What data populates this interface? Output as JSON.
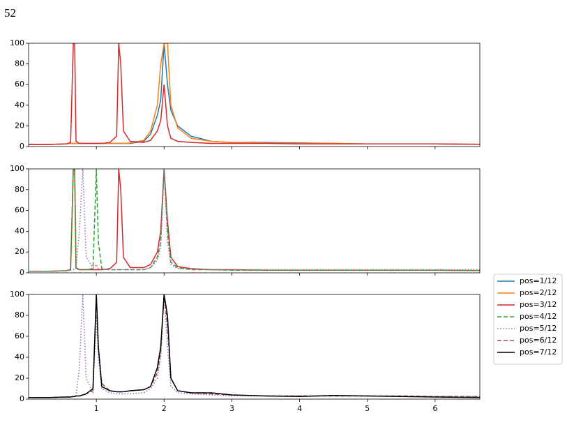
{
  "header": "52",
  "legend": [
    {
      "name": "pos=1/12",
      "color": "#1f77b4",
      "dash": "solid"
    },
    {
      "name": "pos=2/12",
      "color": "#ff7f0e",
      "dash": "solid"
    },
    {
      "name": "pos=3/12",
      "color": "#d62728",
      "dash": "solid"
    },
    {
      "name": "pos=4/12",
      "color": "#2ca02c",
      "dash": "dashed"
    },
    {
      "name": "pos=5/12",
      "color": "#9467bd",
      "dash": "dotted"
    },
    {
      "name": "pos=6/12",
      "color": "#8c564b",
      "dash": "dashed"
    },
    {
      "name": "pos=7/12",
      "color": "#000000",
      "dash": "solid"
    }
  ],
  "chart_data": [
    {
      "type": "line",
      "x": [
        0,
        0.3,
        0.55,
        0.62,
        0.66,
        0.68,
        0.7,
        0.75,
        0.8,
        0.85,
        0.95,
        1.0,
        1.03,
        1.08,
        1.2,
        1.3,
        1.33,
        1.36,
        1.4,
        1.5,
        1.7,
        1.8,
        1.9,
        1.95,
        2.0,
        2.05,
        2.1,
        2.2,
        2.4,
        2.7,
        3.0,
        3.5,
        4.0,
        4.5,
        5.0,
        5.5,
        6.0,
        6.66
      ],
      "xlim": [
        0,
        6.66
      ],
      "ylim": [
        0,
        100
      ],
      "yticks": [
        0,
        20,
        40,
        60,
        80,
        100
      ],
      "series": [
        {
          "color": "#1f77b4",
          "dash": "solid",
          "values": [
            2,
            2,
            2.5,
            3,
            3,
            3,
            3,
            3,
            3,
            3,
            3,
            3,
            3,
            3,
            3,
            3,
            3,
            3,
            3,
            3,
            5,
            12,
            30,
            45,
            100,
            60,
            35,
            20,
            10,
            5,
            4,
            4,
            3.5,
            3,
            2.5,
            2.5,
            2.5,
            2.2
          ]
        },
        {
          "color": "#ff7f0e",
          "dash": "solid",
          "values": [
            2,
            2,
            2.5,
            3,
            3,
            3,
            3,
            3,
            3,
            3,
            3,
            3,
            3,
            3,
            3,
            3,
            3,
            3,
            3,
            3.5,
            6,
            15,
            40,
            80,
            100,
            100,
            40,
            18,
            8,
            5,
            4,
            3.5,
            3,
            3,
            2.5,
            2.5,
            2.5,
            2.2
          ]
        },
        {
          "color": "#d62728",
          "dash": "solid",
          "values": [
            2,
            2,
            2.5,
            4,
            100,
            100,
            5,
            3,
            3,
            3,
            3,
            3,
            3,
            3,
            4,
            10,
            100,
            80,
            15,
            5,
            4,
            6,
            15,
            25,
            60,
            20,
            8,
            5,
            4,
            3,
            3,
            3,
            2.5,
            2.5,
            2.5,
            2.5,
            2.5,
            2.2
          ]
        }
      ]
    },
    {
      "type": "line",
      "x": [
        0,
        0.3,
        0.55,
        0.62,
        0.66,
        0.68,
        0.7,
        0.75,
        0.8,
        0.85,
        0.95,
        1.0,
        1.03,
        1.08,
        1.2,
        1.3,
        1.33,
        1.36,
        1.4,
        1.5,
        1.7,
        1.8,
        1.9,
        1.95,
        2.0,
        2.05,
        2.1,
        2.2,
        2.4,
        2.7,
        3.0,
        3.5,
        4.0,
        4.5,
        5.0,
        5.5,
        6.0,
        6.66
      ],
      "xlim": [
        0,
        6.66
      ],
      "ylim": [
        0,
        100
      ],
      "yticks": [
        0,
        20,
        40,
        60,
        80,
        100
      ],
      "series": [
        {
          "color": "#d62728",
          "dash": "solid",
          "values": [
            1.5,
            1.5,
            2,
            3,
            100,
            100,
            5,
            3,
            3,
            3,
            3,
            3,
            3,
            3,
            4,
            10,
            100,
            80,
            15,
            5,
            5,
            8,
            20,
            40,
            100,
            50,
            15,
            6,
            4,
            3,
            3,
            2.5,
            2.5,
            2.5,
            2.5,
            2.5,
            2.5,
            2.2
          ]
        },
        {
          "color": "#2ca02c",
          "dash": "dashed",
          "values": [
            1.5,
            1.5,
            2,
            3,
            100,
            100,
            4,
            3,
            3,
            3,
            4,
            100,
            30,
            4,
            3,
            3,
            3,
            3,
            3,
            3,
            3,
            5,
            15,
            30,
            100,
            40,
            10,
            5,
            3,
            3,
            2.5,
            2.5,
            2.5,
            2.5,
            2.5,
            2.5,
            2.5,
            2.2
          ]
        },
        {
          "color": "#9467bd",
          "dash": "dotted",
          "values": [
            1.5,
            1.5,
            2,
            2.5,
            3,
            3,
            5,
            40,
            100,
            15,
            5,
            8,
            4,
            3,
            3,
            3,
            3,
            3,
            3,
            3,
            3,
            5,
            12,
            25,
            100,
            30,
            8,
            4,
            3.5,
            3,
            3,
            3,
            3,
            3,
            3,
            3,
            3,
            3
          ]
        }
      ]
    },
    {
      "type": "line",
      "x": [
        0,
        0.3,
        0.55,
        0.62,
        0.66,
        0.68,
        0.7,
        0.75,
        0.8,
        0.85,
        0.95,
        1.0,
        1.03,
        1.08,
        1.2,
        1.3,
        1.33,
        1.36,
        1.4,
        1.5,
        1.7,
        1.8,
        1.9,
        1.95,
        2.0,
        2.05,
        2.1,
        2.2,
        2.4,
        2.7,
        3.0,
        3.5,
        4.0,
        4.5,
        5.0,
        5.5,
        6.0,
        6.66
      ],
      "xlim": [
        0,
        6.66
      ],
      "xticks": [
        1,
        2,
        3,
        4,
        5,
        6
      ],
      "ylim": [
        0,
        100
      ],
      "yticks": [
        0,
        20,
        40,
        60,
        80,
        100
      ],
      "series": [
        {
          "color": "#9467bd",
          "dash": "dotted",
          "values": [
            1.5,
            1.5,
            2,
            2,
            2.5,
            2.5,
            3,
            30,
            100,
            20,
            6,
            80,
            40,
            10,
            6,
            5,
            5,
            5,
            5,
            5,
            6,
            10,
            20,
            40,
            100,
            50,
            12,
            6,
            5,
            4,
            3,
            3,
            3,
            3,
            3,
            2.5,
            2.5,
            2.5
          ]
        },
        {
          "color": "#8c564b",
          "dash": "dashed",
          "values": [
            1.5,
            1.5,
            2,
            2,
            2.5,
            2.5,
            3,
            3,
            4,
            5,
            8,
            100,
            50,
            15,
            8,
            7,
            7,
            7,
            7,
            8,
            9,
            12,
            25,
            45,
            100,
            70,
            20,
            8,
            6,
            5,
            4,
            3,
            3,
            3,
            3,
            3,
            2.5,
            2.5
          ]
        },
        {
          "color": "#000000",
          "dash": "solid",
          "values": [
            1.5,
            1.5,
            2,
            2,
            2.5,
            2.5,
            3,
            3,
            4,
            5,
            10,
            100,
            50,
            12,
            8,
            7,
            7,
            7,
            7,
            8,
            9,
            12,
            30,
            50,
            100,
            80,
            20,
            8,
            6,
            6,
            4,
            3,
            2.5,
            3.5,
            3,
            2.5,
            2,
            1.5
          ]
        }
      ]
    }
  ]
}
